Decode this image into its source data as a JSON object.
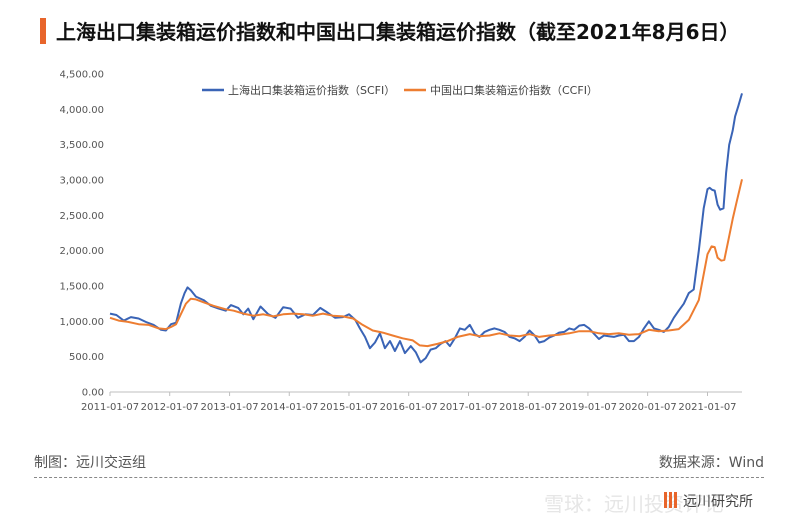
{
  "title": "上海出口集装箱运价指数和中国出口集装箱运价指数（截至2021年8月6日）",
  "source_left": "制图：远川交运组",
  "source_right": "数据来源：Wind",
  "watermark_text": "雪球：远川投资评论",
  "brand_text": "远川研究所",
  "colors": {
    "accent": "#e8652b",
    "scfi": "#3a64b6",
    "ccfi": "#ed7d31"
  },
  "chart_data": {
    "type": "line",
    "title": "",
    "xlabel": "",
    "ylabel": "",
    "ylim": [
      0,
      4500
    ],
    "yticks": [
      0,
      500,
      1000,
      1500,
      2000,
      2500,
      3000,
      3500,
      4000,
      4500
    ],
    "ytick_labels": [
      "0.00",
      "500.00",
      "1,000.00",
      "1,500.00",
      "2,000.00",
      "2,500.00",
      "3,000.00",
      "3,500.00",
      "4,000.00",
      "4,500.00"
    ],
    "xlim": [
      "2011-01-07",
      "2021-08-06"
    ],
    "xtick_labels": [
      "2011-01-07",
      "2012-01-07",
      "2013-01-07",
      "2014-01-07",
      "2015-01-07",
      "2016-01-07",
      "2017-01-07",
      "2018-01-07",
      "2019-01-07",
      "2020-01-07",
      "2021-01-07"
    ],
    "legend": "top-center",
    "grid": false,
    "series": [
      {
        "name": "上海出口集装箱运价指数（SCFI）",
        "color": "#3a64b6",
        "points": [
          [
            "2011-01-07",
            1110
          ],
          [
            "2011-02-15",
            1090
          ],
          [
            "2011-04-01",
            1010
          ],
          [
            "2011-05-15",
            1060
          ],
          [
            "2011-07-01",
            1040
          ],
          [
            "2011-08-15",
            990
          ],
          [
            "2011-10-01",
            950
          ],
          [
            "2011-11-15",
            880
          ],
          [
            "2011-12-15",
            870
          ],
          [
            "2012-01-15",
            960
          ],
          [
            "2012-02-15",
            980
          ],
          [
            "2012-03-15",
            1250
          ],
          [
            "2012-04-07",
            1400
          ],
          [
            "2012-04-25",
            1480
          ],
          [
            "2012-05-15",
            1440
          ],
          [
            "2012-06-15",
            1350
          ],
          [
            "2012-08-01",
            1300
          ],
          [
            "2012-09-15",
            1220
          ],
          [
            "2012-11-01",
            1180
          ],
          [
            "2012-12-15",
            1150
          ],
          [
            "2013-01-15",
            1230
          ],
          [
            "2013-03-01",
            1190
          ],
          [
            "2013-04-01",
            1100
          ],
          [
            "2013-05-01",
            1180
          ],
          [
            "2013-06-01",
            1030
          ],
          [
            "2013-07-15",
            1210
          ],
          [
            "2013-09-01",
            1100
          ],
          [
            "2013-10-15",
            1050
          ],
          [
            "2013-12-01",
            1200
          ],
          [
            "2014-01-15",
            1180
          ],
          [
            "2014-03-01",
            1050
          ],
          [
            "2014-04-15",
            1100
          ],
          [
            "2014-06-01",
            1090
          ],
          [
            "2014-07-15",
            1190
          ],
          [
            "2014-09-01",
            1120
          ],
          [
            "2014-10-15",
            1050
          ],
          [
            "2014-12-01",
            1060
          ],
          [
            "2015-01-07",
            1100
          ],
          [
            "2015-02-15",
            1020
          ],
          [
            "2015-03-15",
            900
          ],
          [
            "2015-04-15",
            780
          ],
          [
            "2015-05-15",
            620
          ],
          [
            "2015-06-15",
            700
          ],
          [
            "2015-07-15",
            830
          ],
          [
            "2015-08-15",
            620
          ],
          [
            "2015-09-15",
            720
          ],
          [
            "2015-10-15",
            580
          ],
          [
            "2015-11-15",
            720
          ],
          [
            "2015-12-15",
            550
          ],
          [
            "2016-01-20",
            650
          ],
          [
            "2016-02-20",
            560
          ],
          [
            "2016-03-20",
            420
          ],
          [
            "2016-04-20",
            480
          ],
          [
            "2016-05-20",
            600
          ],
          [
            "2016-06-20",
            620
          ],
          [
            "2016-07-20",
            680
          ],
          [
            "2016-08-20",
            720
          ],
          [
            "2016-09-15",
            650
          ],
          [
            "2016-10-15",
            760
          ],
          [
            "2016-11-15",
            900
          ],
          [
            "2016-12-15",
            880
          ],
          [
            "2017-01-15",
            950
          ],
          [
            "2017-02-15",
            820
          ],
          [
            "2017-03-15",
            780
          ],
          [
            "2017-04-15",
            850
          ],
          [
            "2017-05-15",
            880
          ],
          [
            "2017-06-15",
            900
          ],
          [
            "2017-07-15",
            880
          ],
          [
            "2017-08-15",
            850
          ],
          [
            "2017-09-15",
            780
          ],
          [
            "2017-10-15",
            760
          ],
          [
            "2017-11-15",
            720
          ],
          [
            "2017-12-15",
            780
          ],
          [
            "2018-01-15",
            870
          ],
          [
            "2018-02-15",
            800
          ],
          [
            "2018-03-15",
            700
          ],
          [
            "2018-04-15",
            720
          ],
          [
            "2018-05-15",
            770
          ],
          [
            "2018-06-15",
            800
          ],
          [
            "2018-07-15",
            840
          ],
          [
            "2018-08-15",
            850
          ],
          [
            "2018-09-15",
            900
          ],
          [
            "2018-10-15",
            880
          ],
          [
            "2018-11-15",
            940
          ],
          [
            "2018-12-15",
            950
          ],
          [
            "2019-01-15",
            900
          ],
          [
            "2019-02-15",
            820
          ],
          [
            "2019-03-15",
            750
          ],
          [
            "2019-04-15",
            800
          ],
          [
            "2019-05-15",
            790
          ],
          [
            "2019-06-15",
            780
          ],
          [
            "2019-07-15",
            800
          ],
          [
            "2019-08-15",
            810
          ],
          [
            "2019-09-15",
            720
          ],
          [
            "2019-10-15",
            720
          ],
          [
            "2019-11-15",
            780
          ],
          [
            "2019-12-15",
            900
          ],
          [
            "2020-01-15",
            1000
          ],
          [
            "2020-02-15",
            900
          ],
          [
            "2020-03-15",
            880
          ],
          [
            "2020-04-15",
            850
          ],
          [
            "2020-05-15",
            920
          ],
          [
            "2020-06-15",
            1050
          ],
          [
            "2020-07-15",
            1150
          ],
          [
            "2020-08-15",
            1250
          ],
          [
            "2020-09-15",
            1400
          ],
          [
            "2020-10-15",
            1450
          ],
          [
            "2020-11-15",
            2000
          ],
          [
            "2020-12-15",
            2600
          ],
          [
            "2021-01-07",
            2870
          ],
          [
            "2021-01-20",
            2890
          ],
          [
            "2021-02-05",
            2860
          ],
          [
            "2021-02-20",
            2850
          ],
          [
            "2021-03-10",
            2650
          ],
          [
            "2021-03-25",
            2580
          ],
          [
            "2021-04-15",
            2600
          ],
          [
            "2021-05-01",
            3100
          ],
          [
            "2021-05-20",
            3500
          ],
          [
            "2021-06-10",
            3700
          ],
          [
            "2021-06-25",
            3900
          ],
          [
            "2021-07-15",
            4050
          ],
          [
            "2021-08-06",
            4225
          ]
        ]
      },
      {
        "name": "中国出口集装箱运价指数（CCFI）",
        "color": "#ed7d31",
        "points": [
          [
            "2011-01-07",
            1050
          ],
          [
            "2011-03-01",
            1010
          ],
          [
            "2011-05-01",
            990
          ],
          [
            "2011-07-01",
            960
          ],
          [
            "2011-09-01",
            950
          ],
          [
            "2011-11-01",
            900
          ],
          [
            "2011-12-15",
            890
          ],
          [
            "2012-01-15",
            920
          ],
          [
            "2012-02-15",
            960
          ],
          [
            "2012-03-15",
            1100
          ],
          [
            "2012-04-15",
            1250
          ],
          [
            "2012-05-15",
            1320
          ],
          [
            "2012-06-15",
            1310
          ],
          [
            "2012-08-01",
            1270
          ],
          [
            "2012-10-01",
            1220
          ],
          [
            "2012-12-15",
            1170
          ],
          [
            "2013-02-01",
            1150
          ],
          [
            "2013-04-01",
            1110
          ],
          [
            "2013-06-01",
            1080
          ],
          [
            "2013-08-01",
            1100
          ],
          [
            "2013-10-01",
            1070
          ],
          [
            "2013-12-01",
            1100
          ],
          [
            "2014-02-01",
            1110
          ],
          [
            "2014-04-01",
            1100
          ],
          [
            "2014-06-01",
            1080
          ],
          [
            "2014-08-01",
            1110
          ],
          [
            "2014-10-01",
            1080
          ],
          [
            "2014-12-01",
            1070
          ],
          [
            "2015-02-01",
            1040
          ],
          [
            "2015-04-01",
            950
          ],
          [
            "2015-06-01",
            870
          ],
          [
            "2015-08-01",
            840
          ],
          [
            "2015-10-01",
            800
          ],
          [
            "2015-12-01",
            760
          ],
          [
            "2016-02-01",
            730
          ],
          [
            "2016-03-15",
            660
          ],
          [
            "2016-05-01",
            650
          ],
          [
            "2016-07-01",
            680
          ],
          [
            "2016-09-01",
            720
          ],
          [
            "2016-11-01",
            780
          ],
          [
            "2017-01-15",
            820
          ],
          [
            "2017-03-15",
            790
          ],
          [
            "2017-05-15",
            800
          ],
          [
            "2017-07-15",
            830
          ],
          [
            "2017-09-15",
            800
          ],
          [
            "2017-11-15",
            790
          ],
          [
            "2018-01-15",
            820
          ],
          [
            "2018-03-15",
            780
          ],
          [
            "2018-05-15",
            800
          ],
          [
            "2018-07-15",
            810
          ],
          [
            "2018-09-15",
            830
          ],
          [
            "2018-11-15",
            860
          ],
          [
            "2019-01-15",
            860
          ],
          [
            "2019-03-15",
            830
          ],
          [
            "2019-05-15",
            820
          ],
          [
            "2019-07-15",
            830
          ],
          [
            "2019-09-15",
            810
          ],
          [
            "2019-11-15",
            820
          ],
          [
            "2020-01-15",
            880
          ],
          [
            "2020-03-15",
            860
          ],
          [
            "2020-05-15",
            870
          ],
          [
            "2020-07-15",
            890
          ],
          [
            "2020-09-15",
            1020
          ],
          [
            "2020-11-15",
            1300
          ],
          [
            "2021-01-07",
            1950
          ],
          [
            "2021-02-01",
            2060
          ],
          [
            "2021-02-20",
            2050
          ],
          [
            "2021-03-10",
            1900
          ],
          [
            "2021-04-01",
            1860
          ],
          [
            "2021-04-20",
            1870
          ],
          [
            "2021-05-15",
            2150
          ],
          [
            "2021-06-10",
            2450
          ],
          [
            "2021-07-05",
            2700
          ],
          [
            "2021-08-06",
            3010
          ]
        ]
      }
    ]
  }
}
